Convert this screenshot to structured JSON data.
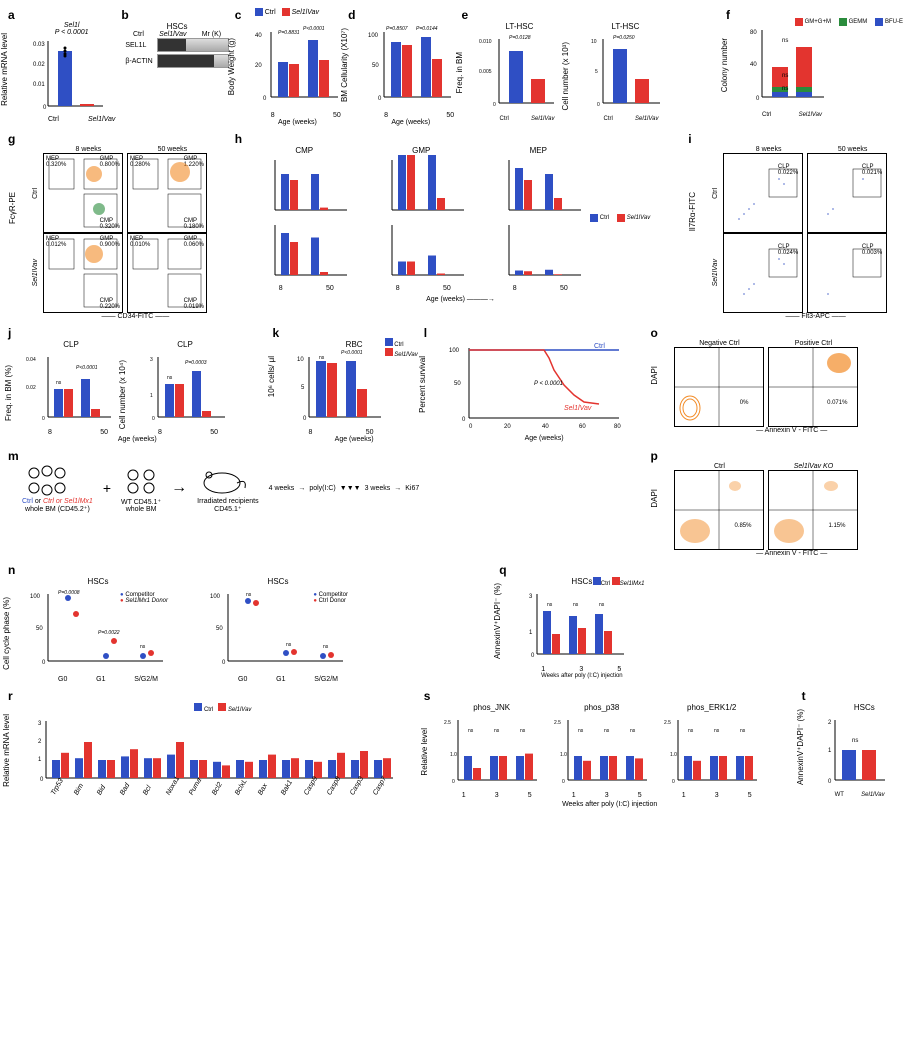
{
  "colors": {
    "ctrl": "#2f4fc4",
    "sel1l": "#e3342f",
    "gm": "#e3342f",
    "gemm": "#2a8c3c",
    "bfu": "#2f4fc4",
    "orange": "#f28c28"
  },
  "a": {
    "label": "a",
    "ylabel": "Relative mRNA level",
    "ylim": [
      0,
      0.03
    ],
    "yticks": [
      "0",
      "0.01",
      "0.02",
      "0.03"
    ],
    "categories": [
      "Ctrl",
      "Sel1lVav"
    ],
    "gene": "Sel1l",
    "pval": "P < 0.0001",
    "values": [
      0.025,
      0.001
    ],
    "bar_colors": [
      "#2f4fc4",
      "#e3342f"
    ]
  },
  "b": {
    "label": "b",
    "title": "HSCs",
    "lanes": [
      "Ctrl",
      "Sel1lVav"
    ],
    "antibodies": [
      "SEL1L",
      "β-ACTIN"
    ],
    "marker": "Mr (K)"
  },
  "c": {
    "label": "c",
    "ylabel": "Body Weight (g)",
    "ylim": [
      0,
      40
    ],
    "yticks": [
      "0",
      "10",
      "20",
      "30",
      "40"
    ],
    "xlabel": "Age (weeks)",
    "xticks": [
      "8",
      "50"
    ],
    "legend": [
      "Ctrl",
      "Sel1lVav"
    ],
    "values": {
      "8": [
        20,
        19
      ],
      "50": [
        33,
        21
      ]
    },
    "pvals": [
      "P = 0.8831",
      "P = 0.8831",
      "P < 0.0001"
    ]
  },
  "d": {
    "label": "d",
    "ylabel": "BM Cellularity (X10⁷)",
    "ylim": [
      0,
      100
    ],
    "yticks": [
      "0",
      "50",
      "100"
    ],
    "xlabel": "Age (weeks)",
    "xticks": [
      "8",
      "50"
    ],
    "values": {
      "8": [
        85,
        80
      ],
      "50": [
        92,
        58
      ]
    },
    "pvals": [
      "P = 0.8507",
      "P = 0.0639",
      "P = 0.0144"
    ]
  },
  "e": {
    "label": "e",
    "title": "LT-HSC",
    "left": {
      "ylabel": "Freq. in BM",
      "ylim": [
        0,
        0.01
      ],
      "yticks": [
        "0",
        "0.002",
        "0.004",
        "0.006",
        "0.008",
        "0.010"
      ],
      "values": [
        0.0075,
        0.0035
      ],
      "pval": "P = 0.0128"
    },
    "right": {
      "ylabel": "Cell number (x 10³)",
      "ylim": [
        0,
        10
      ],
      "yticks": [
        "0",
        "2",
        "4",
        "6",
        "8",
        "10"
      ],
      "values": [
        8,
        3.5
      ],
      "pval": "P = 0.0250"
    },
    "xticks": [
      "Ctrl",
      "Sel1lVav"
    ]
  },
  "f": {
    "label": "f",
    "ylabel": "Colony number",
    "ylim": [
      0,
      80
    ],
    "yticks": [
      "0",
      "20",
      "40",
      "60",
      "80"
    ],
    "xticks": [
      "Ctrl",
      "Sel1lVav"
    ],
    "legend": [
      "GM+G+M",
      "GEMM",
      "BFU-E"
    ],
    "legend_colors": [
      "#e3342f",
      "#2a8c3c",
      "#2f4fc4"
    ],
    "stacks": {
      "Ctrl": {
        "gm": 25,
        "gemm": 5,
        "bfu": 5
      },
      "Sel1l": {
        "gm": 50,
        "gemm": 5,
        "bfu": 5
      }
    },
    "sig": "ns"
  },
  "g": {
    "label": "g",
    "xaxis": "CD34-FITC",
    "yaxis": "FcγR-PE",
    "cols": [
      "8 weeks",
      "50 weeks"
    ],
    "rows": [
      "Ctrl",
      "Sel1lVav"
    ],
    "gates": [
      {
        "MEP": "0.320%",
        "GMP": "0.800%",
        "CMP": "0.320%"
      },
      {
        "MEP": "0.280%",
        "GMP": "1.220%",
        "CMP": "0.180%"
      },
      {
        "MEP": "0.012%",
        "GMP": "0.900%",
        "CMP": "0.220%"
      },
      {
        "MEP": "0.010%",
        "GMP": "0.060%",
        "CMP": "0.019%"
      }
    ]
  },
  "h": {
    "label": "h",
    "subpanels": [
      "CMP",
      "GMP",
      "MEP"
    ],
    "top_ylabel": "Freq. in BM (%)",
    "bot_ylabel": "Cell number (x 10⁵)",
    "xlabel": "Age (weeks)",
    "xticks": [
      "8",
      "50"
    ],
    "legend": [
      "Ctrl",
      "Sel1lVav"
    ],
    "data": {
      "CMP": {
        "freq": {
          "8": [
            0.3,
            0.25
          ],
          "50": [
            0.3,
            0.02
          ]
        },
        "freq_p": [
          "ns",
          "P < 0.0001",
          "P = 0.2567",
          "P < 0.0001"
        ],
        "num": {
          "8": [
            2.8,
            2.2
          ],
          "50": [
            2.5,
            0.2
          ]
        },
        "num_p": [
          "ns",
          "P < 0.0001",
          "P < 0.0001"
        ]
      },
      "GMP": {
        "freq": {
          "8": [
            0.9,
            0.9
          ],
          "50": [
            1.3,
            0.1
          ]
        },
        "freq_p": [
          "ns",
          "P < 0.0001",
          "P = 0.6145",
          "P < 0.0001"
        ],
        "num": {
          "8": [
            0.9,
            0.9
          ],
          "50": [
            1.3,
            0.1
          ]
        },
        "num_p": [
          "P = 0.0002",
          "P < 0.0001"
        ]
      },
      "MEP": {
        "freq": {
          "8": [
            0.35,
            0.25
          ],
          "50": [
            0.3,
            0.1
          ]
        },
        "freq_p": [
          "ns",
          "P = 0.1811",
          "P = 0.0096",
          "P = 0.1352"
        ],
        "num": {
          "8": [
            0.3,
            0.25
          ],
          "50": [
            0.35,
            0.05
          ]
        },
        "num_p": [
          "P = 0.0008",
          "P = 0.0141",
          "P = 0.0021"
        ]
      }
    }
  },
  "i": {
    "label": "i",
    "xaxis": "Flt3-APC",
    "yaxis": "Il7Rα-FITC",
    "cols": [
      "8 weeks",
      "50 weeks"
    ],
    "rows": [
      "Ctrl",
      "Sel1lVav"
    ],
    "gates": [
      {
        "CLP": "0.022%"
      },
      {
        "CLP": "0.021%"
      },
      {
        "CLP": "0.024%"
      },
      {
        "CLP": "0.003%"
      }
    ]
  },
  "j": {
    "label": "j",
    "title": "CLP",
    "left": {
      "ylabel": "Freq. in BM (%)",
      "ylim": [
        0,
        0.04
      ],
      "yticks": [
        "0",
        "0.01",
        "0.02",
        "0.03",
        "0.04"
      ],
      "values": {
        "8": [
          0.022,
          0.022
        ],
        "50": [
          0.03,
          0.005
        ]
      },
      "pvals": [
        "ns",
        "P < 0.0001",
        "P < 0.0001"
      ]
    },
    "right": {
      "ylabel": "Cell number (x 10⁴)",
      "ylim": [
        0,
        3
      ],
      "yticks": [
        "0",
        "1",
        "2",
        "3"
      ],
      "values": {
        "8": [
          1.8,
          1.8
        ],
        "50": [
          2.5,
          0.3
        ]
      },
      "pvals": [
        "ns",
        "P = 0.0003",
        "P < 0.0001"
      ]
    },
    "xlabel": "Age (weeks)",
    "xticks": [
      "8",
      "50"
    ]
  },
  "k": {
    "label": "k",
    "title": "RBC",
    "ylabel": "10⁶ cells/ μl",
    "ylim": [
      0,
      10
    ],
    "yticks": [
      "0",
      "5",
      "10"
    ],
    "xlabel": "Age (weeks)",
    "xticks": [
      "8",
      "50"
    ],
    "values": {
      "8": [
        10,
        9.5
      ],
      "50": [
        10,
        5
      ]
    },
    "pvals": [
      "ns",
      "P < 0.0001",
      "P < 0.0001"
    ],
    "legend": [
      "Ctrl",
      "Sel1lVav"
    ]
  },
  "l": {
    "label": "l",
    "ylabel": "Percent survival",
    "xlabel": "Age (weeks)",
    "xlim": [
      0,
      80
    ],
    "ylim": [
      0,
      100
    ],
    "xticks": [
      "0",
      "20",
      "40",
      "60",
      "80"
    ],
    "yticks": [
      "0",
      "50",
      "100"
    ],
    "ctrl_line": [
      [
        0,
        100
      ],
      [
        80,
        100
      ]
    ],
    "sel1l_line": [
      [
        0,
        100
      ],
      [
        40,
        100
      ],
      [
        42,
        90
      ],
      [
        45,
        70
      ],
      [
        50,
        50
      ],
      [
        55,
        35
      ],
      [
        60,
        20
      ],
      [
        65,
        18
      ]
    ],
    "pval": "P < 0.0001",
    "labels": [
      "Ctrl",
      "Sel1lVav"
    ]
  },
  "m": {
    "label": "m",
    "donor1": "Ctrl or Sel1lMx1",
    "donor1_sub": "whole BM (CD45.2⁺)",
    "donor2": "WT CD45.1⁺",
    "donor2_sub": "whole BM",
    "recipient": "Irradiated recipients",
    "recipient_sub": "CD45.1⁺",
    "step1": "4 weeks",
    "step2": "poly(I:C)",
    "step3": "3 weeks",
    "endpoint": "Ki67"
  },
  "n": {
    "label": "n",
    "title": "HSCs",
    "ylabel": "Cell cycle phase (%)",
    "ylim": [
      0,
      100
    ],
    "yticks": [
      "0",
      "20",
      "40",
      "60",
      "80",
      "100"
    ],
    "xticks": [
      "G0",
      "G1",
      "S/G2/M"
    ],
    "left": {
      "legend": [
        "Competitor",
        "Sel1lMx1 Donor"
      ],
      "values": {
        "G0": [
          90,
          65
        ],
        "G1": [
          5,
          25
        ],
        "S/G2/M": [
          5,
          10
        ]
      },
      "pvals": [
        "P = 0.0008",
        "P = 0.0022",
        "ns"
      ]
    },
    "right": {
      "legend": [
        "Competitor",
        "Ctrl Donor"
      ],
      "values": {
        "G0": [
          85,
          82
        ],
        "G1": [
          10,
          12
        ],
        "S/G2/M": [
          5,
          6
        ]
      },
      "pvals": [
        "ns",
        "ns",
        "ns"
      ]
    }
  },
  "o": {
    "label": "o",
    "xaxis": "Annexin V - FITC",
    "yaxis": "DAPI",
    "cols": [
      "Negative Ctrl",
      "Positive Ctrl"
    ],
    "gates": [
      "0%",
      "0.071%"
    ]
  },
  "p": {
    "label": "p",
    "xaxis": "Annexin V - FITC",
    "yaxis": "DAPI",
    "cols": [
      "Ctrl",
      "Sel1lVav KO"
    ],
    "gates": [
      "0.85%",
      "1.15%"
    ]
  },
  "q": {
    "label": "q",
    "title": "HSCs",
    "ylabel": "AnnexinV⁺DAPI⁻ (%)",
    "ylim": [
      0,
      3
    ],
    "yticks": [
      "0",
      "1",
      "2",
      "3"
    ],
    "xlabel": "Weeks after poly (I:C) injection",
    "xticks": [
      "1",
      "3",
      "5"
    ],
    "legend": [
      "Ctrl",
      "Sel1lMx1"
    ],
    "values": {
      "1": [
        2.5,
        1.2
      ],
      "3": [
        2.0,
        1.5
      ],
      "5": [
        2.2,
        1.3
      ]
    },
    "sig": "ns"
  },
  "r": {
    "label": "r",
    "ylabel": "Relative mRNA level",
    "ylim": [
      0,
      3
    ],
    "yticks": [
      "0",
      "1",
      "2",
      "3"
    ],
    "legend": [
      "Ctrl",
      "Sel1lVav"
    ],
    "genes": [
      "Trp53",
      "Bim",
      "Bid",
      "Bad",
      "Bcl",
      "Noxa1",
      "Puma",
      "Bcl2",
      "BclxL",
      "Bax",
      "Bak1",
      "Casp9",
      "Casp8",
      "Casp3",
      "Casp7"
    ],
    "values": [
      [
        1.0,
        1.4
      ],
      [
        1.1,
        2.0
      ],
      [
        1.0,
        1.0
      ],
      [
        1.2,
        1.6
      ],
      [
        1.1,
        1.1
      ],
      [
        1.3,
        2.0
      ],
      [
        1.0,
        1.0
      ],
      [
        0.9,
        0.7
      ],
      [
        1.0,
        0.9
      ],
      [
        1.0,
        1.3
      ],
      [
        1.0,
        1.1
      ],
      [
        1.0,
        0.9
      ],
      [
        1.0,
        1.4
      ],
      [
        1.0,
        1.5
      ],
      [
        1.0,
        1.1
      ]
    ]
  },
  "s": {
    "label": "s",
    "subpanels": [
      "phos_JNK",
      "phos_p38",
      "phos_ERK1/2"
    ],
    "ylabel": "Relative level",
    "ylim": [
      0,
      2.5
    ],
    "yticks": [
      "0",
      "0.5",
      "1.0",
      "1.5",
      "2.0",
      "2.5"
    ],
    "xlabel": "Weeks after poly (I:C) injection",
    "xticks": [
      "1",
      "3",
      "5"
    ],
    "legend": [
      "Ctrl",
      "Sel1lMx1"
    ],
    "values": {
      "phos_JNK": {
        "1": [
          1.0,
          0.5
        ],
        "3": [
          1.0,
          1.0
        ],
        "5": [
          1.0,
          1.1
        ]
      },
      "phos_p38": {
        "1": [
          1.0,
          0.8
        ],
        "3": [
          1.0,
          1.0
        ],
        "5": [
          1.0,
          0.9
        ]
      },
      "phos_ERK1/2": {
        "1": [
          1.0,
          0.8
        ],
        "3": [
          1.0,
          1.0
        ],
        "5": [
          1.0,
          1.0
        ]
      }
    },
    "sig": "ns"
  },
  "t": {
    "label": "t",
    "title": "HSCs",
    "ylabel": "AnnexinV⁺DAPI⁻ (%)",
    "ylim": [
      0,
      2
    ],
    "yticks": [
      "0",
      "1",
      "2"
    ],
    "xticks": [
      "WT",
      "Sel1lVav"
    ],
    "values": [
      1.2,
      1.2
    ],
    "sig": "ns"
  }
}
